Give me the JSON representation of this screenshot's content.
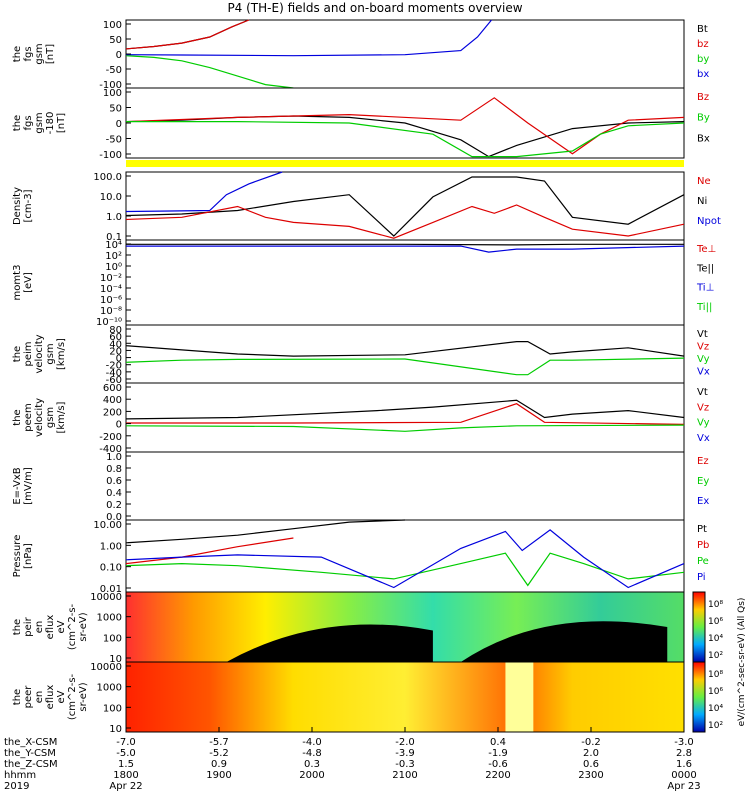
{
  "title": "P4 (TH-E) fields and on-board moments overview",
  "colors": {
    "black": "#000000",
    "red": "#dd0000",
    "green": "#00cc00",
    "blue": "#0000dd",
    "yellow": "#ffff00"
  },
  "chart_data": {
    "type": "line",
    "time_range": [
      "18:00",
      "00:00"
    ],
    "panels": [
      {
        "id": "fgs_gsm",
        "ylabel": [
          "the",
          "fgs",
          "gsm",
          "[nT]"
        ],
        "yticks": [
          "100",
          "50",
          "0",
          "-50",
          "-100"
        ],
        "ylim": [
          -100,
          100
        ],
        "legend": [
          {
            "name": "Bt",
            "color": "#000000"
          },
          {
            "name": "bz",
            "color": "#dd0000"
          },
          {
            "name": "by",
            "color": "#00cc00"
          },
          {
            "name": "bx",
            "color": "#0000dd"
          }
        ],
        "series": [
          {
            "name": "Bt",
            "color": "#000000",
            "x": [
              0,
              0.05,
              0.1,
              0.15,
              0.19,
              0.22
            ],
            "y": [
              15,
              22,
              32,
              50,
              80,
              100
            ]
          },
          {
            "name": "bz",
            "color": "#dd0000",
            "x": [
              0,
              0.05,
              0.1,
              0.15,
              0.19,
              0.22
            ],
            "y": [
              15,
              22,
              32,
              50,
              80,
              100
            ]
          },
          {
            "name": "by",
            "color": "#00cc00",
            "x": [
              0,
              0.05,
              0.1,
              0.15,
              0.2,
              0.25,
              0.3
            ],
            "y": [
              -5,
              -10,
              -20,
              -40,
              -65,
              -90,
              -100
            ]
          },
          {
            "name": "bx",
            "color": "#0000dd",
            "x": [
              0,
              0.1,
              0.3,
              0.5,
              0.6,
              0.63,
              0.655
            ],
            "y": [
              -2,
              -3,
              -5,
              -2,
              10,
              50,
              100
            ]
          }
        ]
      },
      {
        "id": "fgs_gsm2",
        "ylabel": [
          "the",
          "fgs",
          "gsm",
          "-180",
          "[nT]"
        ],
        "yticks": [
          "100",
          "50",
          "0",
          "-50",
          "-100"
        ],
        "ylim": [
          -125,
          125
        ],
        "legend": [
          {
            "name": "Bz",
            "color": "#dd0000"
          },
          {
            "name": "By",
            "color": "#00cc00"
          },
          {
            "name": "Bx",
            "color": "#000000"
          }
        ],
        "series": [
          {
            "name": "Bt",
            "color": "#000000",
            "x": [
              0,
              0.1,
              0.2,
              0.3,
              0.4,
              0.5,
              0.6,
              0.65,
              0.7,
              0.8,
              0.9,
              1.0
            ],
            "y": [
              5,
              10,
              20,
              25,
              20,
              0,
              -60,
              -120,
              -80,
              -20,
              0,
              5
            ]
          },
          {
            "name": "bz",
            "color": "#dd0000",
            "x": [
              0,
              0.2,
              0.4,
              0.6,
              0.66,
              0.72,
              0.8,
              0.85,
              0.9,
              1.0
            ],
            "y": [
              5,
              20,
              30,
              10,
              90,
              0,
              -110,
              -40,
              10,
              20
            ]
          },
          {
            "name": "by",
            "color": "#00cc00",
            "x": [
              0,
              0.2,
              0.4,
              0.55,
              0.62,
              0.7,
              0.8,
              0.85,
              0.9,
              1.0
            ],
            "y": [
              5,
              5,
              0,
              -40,
              -120,
              -120,
              -100,
              -40,
              -10,
              0
            ]
          }
        ]
      },
      {
        "id": "density",
        "ylabel": [
          "Density",
          "[cm-3]"
        ],
        "yticks": [
          "100.0",
          "10.0",
          "1.0",
          "0.1"
        ],
        "ylim": [
          0.1,
          100
        ],
        "scale": "log",
        "legend": [
          {
            "name": "Ne",
            "color": "#dd0000"
          },
          {
            "name": "Ni",
            "color": "#000000"
          },
          {
            "name": "Npot",
            "color": "#0000dd"
          }
        ],
        "series": [
          {
            "name": "Ni",
            "color": "#000000",
            "x": [
              0,
              0.1,
              0.2,
              0.3,
              0.4,
              0.48,
              0.55,
              0.62,
              0.7,
              0.75,
              0.8,
              0.9,
              1.0
            ],
            "y": [
              1.2,
              1.4,
              2.0,
              5,
              10,
              0.15,
              8,
              60,
              60,
              40,
              1.0,
              0.5,
              10
            ]
          },
          {
            "name": "Ne",
            "color": "#dd0000",
            "x": [
              0,
              0.1,
              0.2,
              0.25,
              0.3,
              0.4,
              0.48,
              0.55,
              0.62,
              0.66,
              0.7,
              0.75,
              0.8,
              0.9,
              1.0
            ],
            "y": [
              0.8,
              1.0,
              3.0,
              1.0,
              0.6,
              0.4,
              0.12,
              0.6,
              3.0,
              1.5,
              3.5,
              1.0,
              0.3,
              0.15,
              0.5
            ]
          },
          {
            "name": "Npot",
            "color": "#0000dd",
            "x": [
              0,
              0.08,
              0.15,
              0.18,
              0.22,
              0.28
            ],
            "y": [
              1.8,
              1.9,
              2.0,
              10,
              30,
              100
            ]
          }
        ]
      },
      {
        "id": "momt3",
        "ylabel": [
          "momt3",
          "[eV]"
        ],
        "yticks": [
          "10⁴",
          "10²",
          "10⁰",
          "10⁻²",
          "10⁻⁴",
          "10⁻⁶",
          "10⁻⁸",
          "10⁻¹⁰"
        ],
        "ylim": [
          -10,
          4
        ],
        "legend": [
          {
            "name": "Te⊥",
            "color": "#dd0000"
          },
          {
            "name": "Te||",
            "color": "#000000"
          },
          {
            "name": "Ti⊥",
            "color": "#0000dd"
          },
          {
            "name": "Ti||",
            "color": "#00cc00"
          }
        ],
        "series": [
          {
            "name": "Te",
            "color": "#000000",
            "x": [
              0,
              0.5,
              0.7,
              0.8,
              1.0
            ],
            "y": [
              3.3,
              3.3,
              3.2,
              3.3,
              3.3
            ]
          },
          {
            "name": "Ti",
            "color": "#0000dd",
            "x": [
              0,
              0.6,
              0.65,
              0.7,
              0.8,
              1.0
            ],
            "y": [
              3.0,
              3.0,
              2.0,
              2.5,
              2.5,
              3.0
            ]
          }
        ]
      },
      {
        "id": "peim_velocity",
        "ylabel": [
          "the",
          "peim",
          "velocity",
          "gsm",
          "[km/s]"
        ],
        "yticks": [
          "80",
          "60",
          "40",
          "20",
          "0",
          "-20",
          "-40",
          "-60"
        ],
        "ylim": [
          -60,
          80
        ],
        "legend": [
          {
            "name": "Vt",
            "color": "#000000"
          },
          {
            "name": "Vz",
            "color": "#dd0000"
          },
          {
            "name": "Vy",
            "color": "#00cc00"
          },
          {
            "name": "Vx",
            "color": "#0000dd"
          }
        ],
        "series": [
          {
            "name": "Vt",
            "color": "#000000",
            "x": [
              0,
              0.1,
              0.2,
              0.3,
              0.5,
              0.7,
              0.72,
              0.76,
              0.8,
              0.9,
              1.0
            ],
            "y": [
              30,
              20,
              10,
              5,
              8,
              40,
              40,
              10,
              15,
              25,
              5
            ]
          },
          {
            "name": "Vy",
            "color": "#00cc00",
            "x": [
              0,
              0.1,
              0.2,
              0.5,
              0.7,
              0.72,
              0.76,
              0.8,
              1.0
            ],
            "y": [
              -10,
              -5,
              -3,
              -2,
              -40,
              -40,
              -5,
              -5,
              0
            ]
          }
        ]
      },
      {
        "id": "peem_velocity",
        "ylabel": [
          "the",
          "peem",
          "velocity",
          "gsm",
          "[km/s]"
        ],
        "yticks": [
          "600",
          "400",
          "200",
          "0",
          "-200",
          "-400"
        ],
        "ylim": [
          -400,
          600
        ],
        "legend": [
          {
            "name": "Vt",
            "color": "#000000"
          },
          {
            "name": "Vz",
            "color": "#dd0000"
          },
          {
            "name": "Vy",
            "color": "#00cc00"
          },
          {
            "name": "Vx",
            "color": "#0000dd"
          }
        ],
        "series": [
          {
            "name": "Vt",
            "color": "#000000",
            "x": [
              0,
              0.2,
              0.45,
              0.55,
              0.7,
              0.75,
              0.8,
              0.9,
              1.0
            ],
            "y": [
              80,
              100,
              200,
              250,
              350,
              100,
              150,
              200,
              100
            ]
          },
          {
            "name": "Vz",
            "color": "#dd0000",
            "x": [
              0,
              0.3,
              0.6,
              0.7,
              0.75,
              1.0
            ],
            "y": [
              20,
              20,
              30,
              300,
              30,
              0
            ]
          },
          {
            "name": "Vy",
            "color": "#00cc00",
            "x": [
              0,
              0.3,
              0.5,
              0.6,
              0.7,
              1.0
            ],
            "y": [
              -20,
              -30,
              -100,
              -50,
              -20,
              -10
            ]
          }
        ]
      },
      {
        "id": "e_field",
        "ylabel": [
          "E=-VxB",
          "[mV/m]"
        ],
        "yticks": [
          "1.0",
          "0.8",
          "0.6",
          "0.4",
          "0.2",
          "0.0"
        ],
        "ylim": [
          0,
          1
        ],
        "legend": [
          {
            "name": "Ez",
            "color": "#dd0000"
          },
          {
            "name": "Ey",
            "color": "#00cc00"
          },
          {
            "name": "Ex",
            "color": "#0000dd"
          }
        ],
        "series": []
      },
      {
        "id": "pressure",
        "ylabel": [
          "Pressure",
          "[nPa]"
        ],
        "yticks": [
          "10.00",
          "1.00",
          "0.10",
          "0.01"
        ],
        "ylim": [
          0.005,
          10
        ],
        "scale": "log",
        "legend": [
          {
            "name": "Pt",
            "color": "#000000"
          },
          {
            "name": "Pb",
            "color": "#dd0000"
          },
          {
            "name": "Pe",
            "color": "#00cc00"
          },
          {
            "name": "Pi",
            "color": "#0000dd"
          }
        ],
        "series": [
          {
            "name": "Pt",
            "color": "#000000",
            "x": [
              0,
              0.1,
              0.2,
              0.3,
              0.4,
              0.5
            ],
            "y": [
              0.9,
              1.3,
              2.0,
              4.0,
              8.0,
              12.0
            ]
          },
          {
            "name": "Pb",
            "color": "#dd0000",
            "x": [
              0,
              0.1,
              0.2,
              0.3
            ],
            "y": [
              0.1,
              0.2,
              0.6,
              1.5
            ]
          },
          {
            "name": "Pe",
            "color": "#00cc00",
            "x": [
              0,
              0.1,
              0.2,
              0.35,
              0.48,
              0.6,
              0.68,
              0.72,
              0.76,
              0.82,
              0.9,
              1.0
            ],
            "y": [
              0.08,
              0.1,
              0.08,
              0.04,
              0.02,
              0.1,
              0.3,
              0.01,
              0.3,
              0.1,
              0.02,
              0.04
            ]
          },
          {
            "name": "Pi",
            "color": "#0000dd",
            "x": [
              0,
              0.1,
              0.2,
              0.35,
              0.48,
              0.6,
              0.68,
              0.71,
              0.76,
              0.82,
              0.9,
              1.0
            ],
            "y": [
              0.15,
              0.2,
              0.25,
              0.2,
              0.008,
              0.5,
              3.0,
              0.4,
              3.5,
              0.2,
              0.008,
              0.1
            ]
          }
        ]
      },
      {
        "id": "peir_eflux",
        "type": "heatmap",
        "ylabel": [
          "the",
          "peir",
          "en",
          "eflux",
          "eV",
          "(cm^2-s-",
          "sr-eV)"
        ],
        "yticks": [
          "10000",
          "1000",
          "100",
          "10"
        ]
      },
      {
        "id": "peer_eflux",
        "type": "heatmap",
        "ylabel": [
          "the",
          "peer",
          "en",
          "eflux",
          "eV",
          "(cm^2-s-",
          "sr-eV)"
        ],
        "yticks": [
          "10000",
          "1000",
          "100",
          "10"
        ]
      }
    ],
    "colorbar": {
      "label": "eV/(cm^2-sec-sr-eV) (All Qs)",
      "ticks_upper": [
        "10⁸",
        "10⁶",
        "10⁴",
        "10²"
      ],
      "ticks_lower": [
        "10⁸",
        "10⁶",
        "10⁴",
        "10²"
      ]
    },
    "x_axis": {
      "rows": [
        {
          "label": "the_X-CSM",
          "values": [
            "-7.0",
            "-5.7",
            "-4.0",
            "-2.0",
            "0.4",
            "-0.2",
            "-3.0"
          ]
        },
        {
          "label": "the_Y-CSM",
          "values": [
            "-5.0",
            "-5.2",
            "-4.8",
            "-3.9",
            "-1.9",
            "2.0",
            "2.8"
          ]
        },
        {
          "label": "the_Z-CSM",
          "values": [
            "1.5",
            "0.9",
            "0.3",
            "-0.3",
            "-0.6",
            "0.6",
            "1.6"
          ]
        },
        {
          "label": "hhmm",
          "values": [
            "1800",
            "1900",
            "2000",
            "2100",
            "2200",
            "2300",
            "0000"
          ]
        },
        {
          "label": "2019",
          "values": [
            "Apr 22",
            "",
            "",
            "",
            "",
            "",
            "Apr 23"
          ]
        }
      ]
    }
  }
}
